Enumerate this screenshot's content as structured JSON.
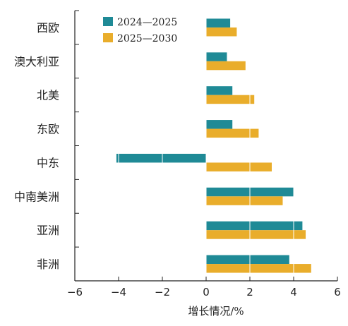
{
  "chart_data": {
    "type": "bar",
    "orientation": "horizontal",
    "categories": [
      "西欧",
      "澳大利亚",
      "北美",
      "东欧",
      "中东",
      "中南美洲",
      "亚洲",
      "非洲"
    ],
    "series": [
      {
        "name": "2024—2025",
        "color": "#1f8a96",
        "values": [
          1.1,
          0.95,
          1.2,
          1.2,
          -4.1,
          4.0,
          4.4,
          3.8
        ]
      },
      {
        "name": "2025—2030",
        "color": "#e9ad2b",
        "values": [
          1.4,
          1.8,
          2.2,
          2.4,
          3.0,
          3.5,
          4.55,
          4.8
        ]
      }
    ],
    "xlabel": "增长情况/%",
    "ylabel": "",
    "xlim": [
      -6,
      6
    ],
    "xticks": [
      -6,
      -4,
      -2,
      0,
      2,
      4,
      6
    ],
    "xtick_labels": [
      "−6",
      "−4",
      "−2",
      "0",
      "2",
      "4",
      "6"
    ],
    "grid": "vertical-white-lines",
    "legend_position": "top-left"
  }
}
